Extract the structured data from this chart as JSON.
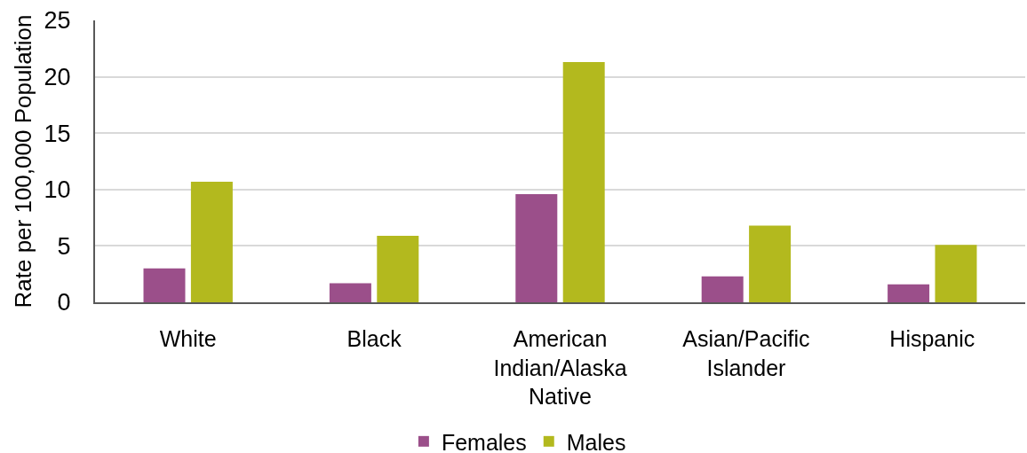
{
  "chart_data": {
    "type": "bar",
    "ylabel": "Rate per 100,000 Population",
    "categories": [
      "White",
      "Black",
      "American Indian/Alaska Native",
      "Asian/Pacific Islander",
      "Hispanic"
    ],
    "series": [
      {
        "name": "Females",
        "color": "#9b4f8a",
        "values": [
          3.0,
          1.7,
          9.6,
          2.3,
          1.6
        ]
      },
      {
        "name": "Males",
        "color": "#b3b91e",
        "values": [
          10.7,
          5.9,
          21.3,
          6.8,
          5.1
        ]
      }
    ],
    "ylim": [
      0,
      25
    ],
    "yticks": [
      0,
      5,
      10,
      15,
      20,
      25
    ],
    "grid": "y",
    "legend": "bottom"
  }
}
